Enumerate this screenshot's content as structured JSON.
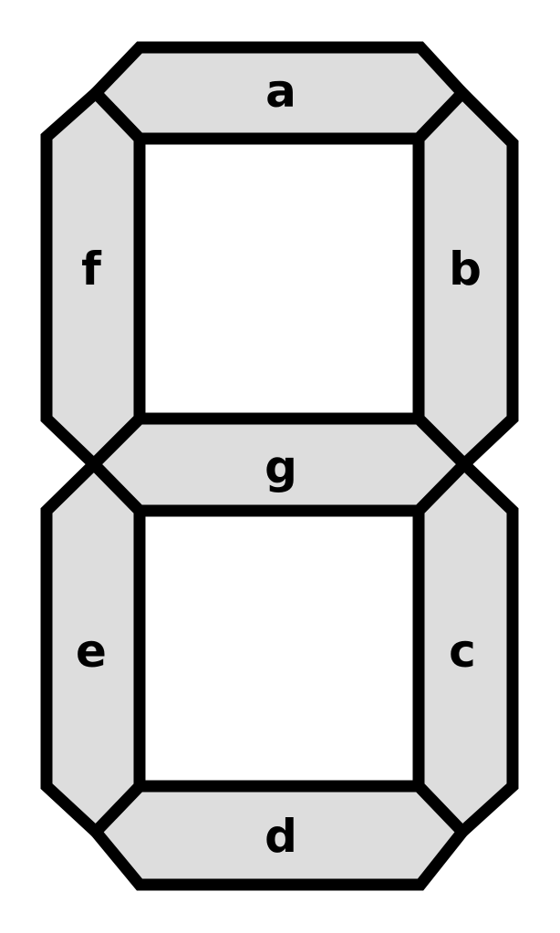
{
  "diagram": {
    "segments": {
      "a": {
        "label": "a"
      },
      "b": {
        "label": "b"
      },
      "c": {
        "label": "c"
      },
      "d": {
        "label": "d"
      },
      "e": {
        "label": "e"
      },
      "f": {
        "label": "f"
      },
      "g": {
        "label": "g"
      }
    },
    "colors": {
      "segment_fill": "#dddddd",
      "outline": "#000000",
      "background": "#ffffff"
    }
  }
}
